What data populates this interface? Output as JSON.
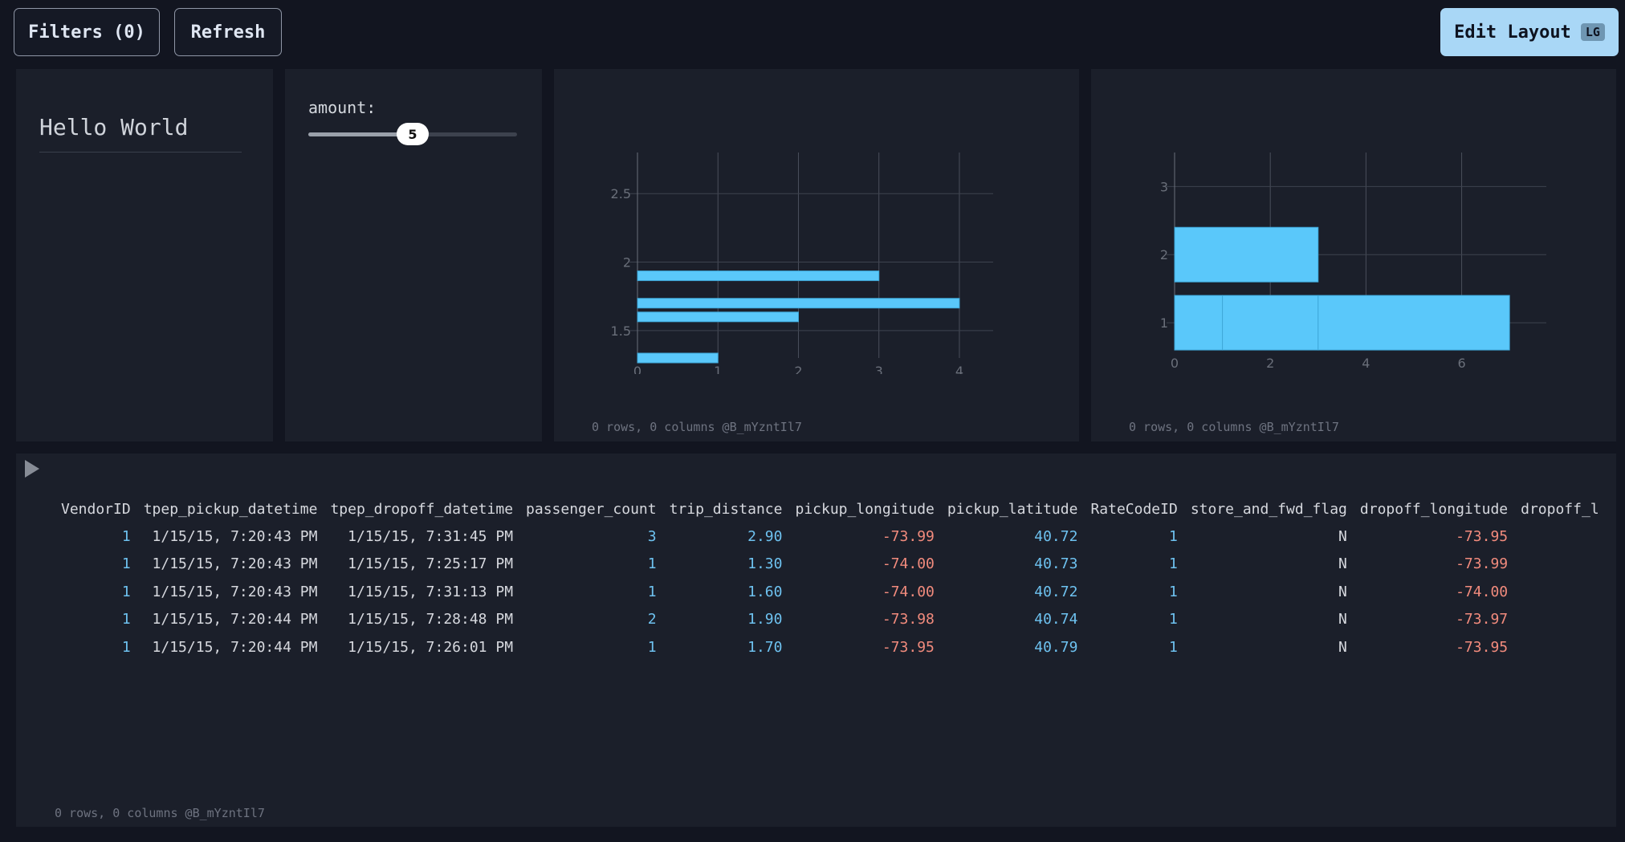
{
  "toolbar": {
    "filters_label": "Filters (0)",
    "refresh_label": "Refresh",
    "edit_layout_label": "Edit Layout",
    "edit_layout_badge": "LG"
  },
  "text_panel": {
    "text": "Hello World"
  },
  "slider_panel": {
    "label": "amount:",
    "value": "5",
    "fraction": 0.5
  },
  "chart_footer": "0 rows, 0 columns @B_mYzntIl7",
  "table_footer": "0 rows, 0 columns @B_mYzntIl7",
  "colors": {
    "bar": "#5ac8fa",
    "positive": "#6ec2f0",
    "negative": "#f28b7d"
  },
  "chart_data": [
    {
      "type": "bar",
      "orientation": "horizontal",
      "bars": [
        {
          "y": 1.3,
          "x": 1
        },
        {
          "y": 1.6,
          "x": 2
        },
        {
          "y": 1.7,
          "x": 4
        },
        {
          "y": 1.9,
          "x": 3
        }
      ],
      "xlim": [
        0,
        4.2
      ],
      "ylim": [
        1.3,
        2.8
      ],
      "xticks": [
        "0",
        "1",
        "2",
        "3",
        "4"
      ],
      "yticks": [
        "1.5",
        "2",
        "2.5"
      ],
      "grid": true
    },
    {
      "type": "bar",
      "orientation": "horizontal",
      "stacked": true,
      "bars": [
        {
          "y": 1,
          "segments": [
            [
              0,
              1
            ],
            [
              1,
              3
            ],
            [
              3,
              7
            ]
          ]
        },
        {
          "y": 2,
          "segments": [
            [
              0,
              3
            ]
          ]
        }
      ],
      "xlim": [
        0,
        7.4
      ],
      "ylim": [
        0.6,
        3.5
      ],
      "xticks": [
        "0",
        "2",
        "4",
        "6"
      ],
      "yticks": [
        "1",
        "2",
        "3"
      ],
      "grid": true
    }
  ],
  "table": {
    "columns": [
      "VendorID",
      "tpep_pickup_datetime",
      "tpep_dropoff_datetime",
      "passenger_count",
      "trip_distance",
      "pickup_longitude",
      "pickup_latitude",
      "RateCodeID",
      "store_and_fwd_flag",
      "dropoff_longitude",
      "dropoff_l"
    ],
    "rows": [
      [
        "1",
        "1/15/15, 7:20:43 PM",
        "1/15/15, 7:31:45 PM",
        "3",
        "2.90",
        "-73.99",
        "40.72",
        "1",
        "N",
        "-73.95"
      ],
      [
        "1",
        "1/15/15, 7:20:43 PM",
        "1/15/15, 7:25:17 PM",
        "1",
        "1.30",
        "-74.00",
        "40.73",
        "1",
        "N",
        "-73.99"
      ],
      [
        "1",
        "1/15/15, 7:20:43 PM",
        "1/15/15, 7:31:13 PM",
        "1",
        "1.60",
        "-74.00",
        "40.72",
        "1",
        "N",
        "-74.00"
      ],
      [
        "1",
        "1/15/15, 7:20:44 PM",
        "1/15/15, 7:28:48 PM",
        "2",
        "1.90",
        "-73.98",
        "40.74",
        "1",
        "N",
        "-73.97"
      ],
      [
        "1",
        "1/15/15, 7:20:44 PM",
        "1/15/15, 7:26:01 PM",
        "1",
        "1.70",
        "-73.95",
        "40.79",
        "1",
        "N",
        "-73.95"
      ]
    ]
  }
}
